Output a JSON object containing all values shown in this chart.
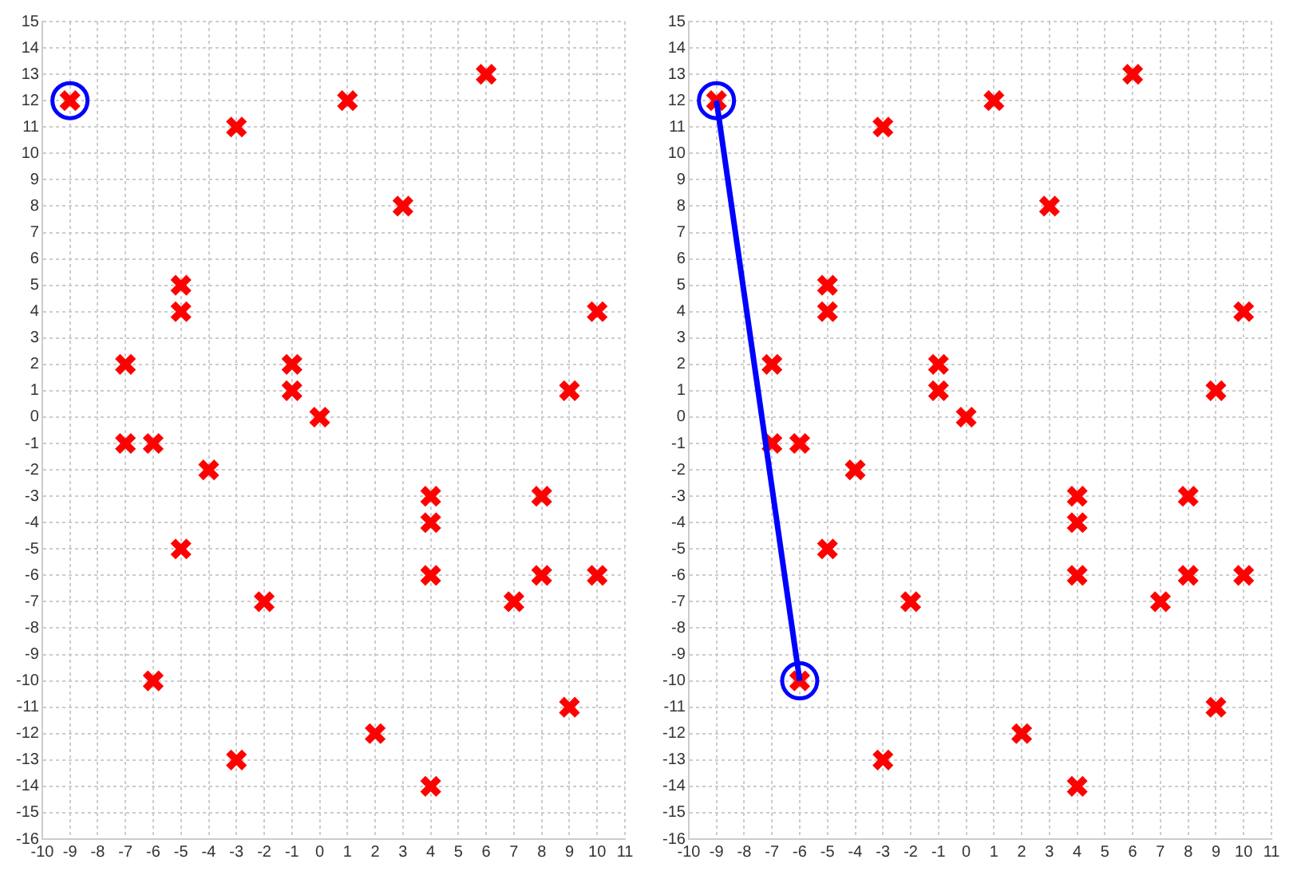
{
  "chart_data": [
    {
      "type": "scatter",
      "xlim": [
        -10,
        11
      ],
      "ylim": [
        -16,
        15
      ],
      "xticks": [
        -10,
        -9,
        -8,
        -7,
        -6,
        -5,
        -4,
        -3,
        -2,
        -1,
        0,
        1,
        2,
        3,
        4,
        5,
        6,
        7,
        8,
        9,
        10,
        11
      ],
      "yticks": [
        -16,
        -15,
        -14,
        -13,
        -12,
        -11,
        -10,
        -9,
        -8,
        -7,
        -6,
        -5,
        -4,
        -3,
        -2,
        -1,
        0,
        1,
        2,
        3,
        4,
        5,
        6,
        7,
        8,
        9,
        10,
        11,
        12,
        13,
        14,
        15
      ],
      "grid": true,
      "legend": false,
      "series": [
        {
          "type": "scatter",
          "marker": "cross",
          "color": "#ff0000",
          "x": [
            -9,
            -3,
            1,
            6,
            3,
            -5,
            -5,
            10,
            -7,
            -1,
            -1,
            9,
            0,
            -7,
            -6,
            -4,
            4,
            8,
            4,
            -5,
            4,
            8,
            10,
            -2,
            7,
            -6,
            9,
            2,
            -3,
            4
          ],
          "values": [
            12,
            11,
            12,
            13,
            8,
            5,
            4,
            4,
            2,
            2,
            1,
            1,
            0,
            -1,
            -1,
            -2,
            -3,
            -3,
            -4,
            -5,
            -6,
            -6,
            -6,
            -7,
            -7,
            -10,
            -11,
            -12,
            -13,
            -14
          ]
        },
        {
          "type": "scatter",
          "marker": "circle",
          "color": "#0000ff",
          "x": [
            -9
          ],
          "values": [
            12
          ]
        }
      ]
    },
    {
      "type": "scatter",
      "xlim": [
        -10,
        11
      ],
      "ylim": [
        -16,
        15
      ],
      "xticks": [
        -10,
        -9,
        -8,
        -7,
        -6,
        -5,
        -4,
        -3,
        -2,
        -1,
        0,
        1,
        2,
        3,
        4,
        5,
        6,
        7,
        8,
        9,
        10,
        11
      ],
      "yticks": [
        -16,
        -15,
        -14,
        -13,
        -12,
        -11,
        -10,
        -9,
        -8,
        -7,
        -6,
        -5,
        -4,
        -3,
        -2,
        -1,
        0,
        1,
        2,
        3,
        4,
        5,
        6,
        7,
        8,
        9,
        10,
        11,
        12,
        13,
        14,
        15
      ],
      "grid": true,
      "legend": false,
      "series": [
        {
          "type": "scatter",
          "marker": "cross",
          "color": "#ff0000",
          "x": [
            -9,
            -3,
            1,
            6,
            3,
            -5,
            -5,
            10,
            -7,
            -1,
            -1,
            9,
            0,
            -7,
            -6,
            -4,
            4,
            8,
            4,
            -5,
            4,
            8,
            10,
            -2,
            7,
            -6,
            9,
            2,
            -3,
            4
          ],
          "values": [
            12,
            11,
            12,
            13,
            8,
            5,
            4,
            4,
            2,
            2,
            1,
            1,
            0,
            -1,
            -1,
            -2,
            -3,
            -3,
            -4,
            -5,
            -6,
            -6,
            -6,
            -7,
            -7,
            -10,
            -11,
            -12,
            -13,
            -14
          ]
        },
        {
          "type": "line",
          "marker": "circle",
          "color": "#0000ff",
          "x": [
            -9,
            -6
          ],
          "values": [
            12,
            -10
          ]
        }
      ]
    }
  ]
}
